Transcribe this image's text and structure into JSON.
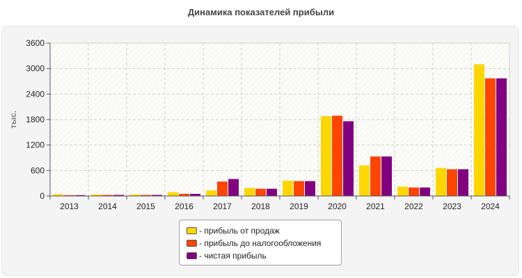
{
  "chart_data": {
    "type": "bar",
    "title": "Динамика показателей прибыли",
    "ylabel": "тыс.",
    "xlabel": "",
    "ylim": [
      0,
      3600
    ],
    "yticks": [
      0,
      600,
      1200,
      1800,
      2400,
      3000,
      3600
    ],
    "grid": true,
    "legend_position": "bottom",
    "categories": [
      "2013",
      "2014",
      "2015",
      "2016",
      "2017",
      "2018",
      "2019",
      "2020",
      "2021",
      "2022",
      "2023",
      "2024"
    ],
    "series": [
      {
        "name": "- прибыль от продаж",
        "color": "#ffd700",
        "values": [
          40,
          35,
          35,
          90,
          130,
          190,
          360,
          1880,
          720,
          220,
          660,
          3100
        ]
      },
      {
        "name": "- прибыль до налогообложения",
        "color": "#ff4500",
        "values": [
          20,
          25,
          25,
          50,
          340,
          170,
          350,
          1890,
          930,
          200,
          630,
          2770
        ]
      },
      {
        "name": "- чистая прибыль",
        "color": "#800080",
        "values": [
          20,
          25,
          25,
          50,
          400,
          170,
          350,
          1760,
          930,
          200,
          630,
          2770
        ]
      }
    ]
  }
}
